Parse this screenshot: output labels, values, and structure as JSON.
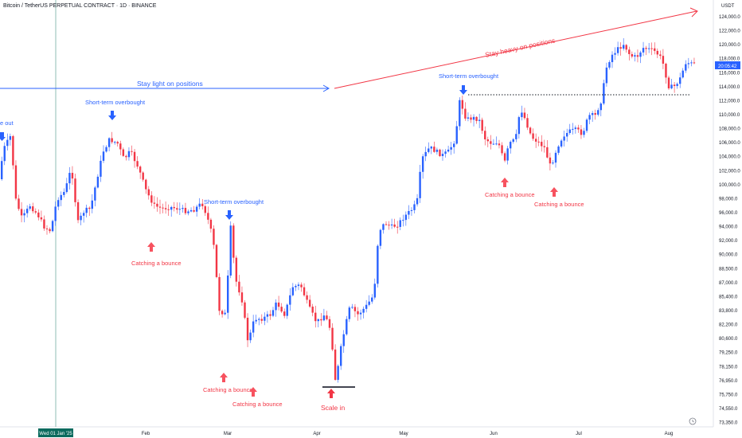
{
  "chart_data": {
    "type": "candlestick",
    "title": "Bitcoin / TetherUS PERPETUAL CONTRACT · 1D · BINANCE",
    "currency_label": "USDT",
    "current_price_label": "20:05:42",
    "y_ticks": [
      "124,000.0",
      "122,000.0",
      "120,000.0",
      "118,000.0",
      "116,000.0",
      "114,000.0",
      "112,000.0",
      "110,000.0",
      "108,000.0",
      "106,000.0",
      "104,000.0",
      "102,000.0",
      "100,000.0",
      "98,000.0",
      "96,000.0",
      "94,000.0",
      "92,000.0",
      "90,000.0",
      "88,500.0",
      "87,000.0",
      "85,400.0",
      "83,800.0",
      "82,200.0",
      "80,600.0",
      "79,250.0",
      "78,150.0",
      "76,950.0",
      "75,750.0",
      "74,550.0",
      "73,350.0"
    ],
    "x_ticks": [
      {
        "label": "Wed 01 Jan '25",
        "highlight": true
      },
      {
        "label": "Feb"
      },
      {
        "label": "Mar"
      },
      {
        "label": "Apr"
      },
      {
        "label": "May"
      },
      {
        "label": "Jun"
      },
      {
        "label": "Jul"
      },
      {
        "label": "Aug"
      }
    ],
    "annotations": {
      "stay_light": "Stay light on positions",
      "stay_heavy": "Stay heavy on positions",
      "e_out": "e out",
      "overbought": "Short-term overbought",
      "bounce": "Catching a bounce",
      "scale_in": "Scale in"
    },
    "colors": {
      "up": "#2962ff",
      "down": "#f23645",
      "arrow_red": "#f7525f",
      "arrow_blue": "#2962ff",
      "scale_line": "#434651"
    }
  }
}
